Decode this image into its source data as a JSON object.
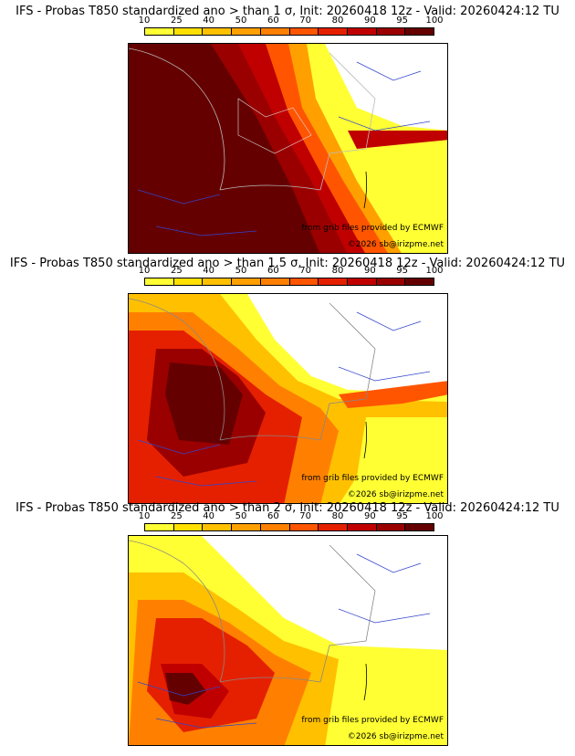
{
  "legend": {
    "labels": [
      "10",
      "25",
      "40",
      "50",
      "60",
      "70",
      "80",
      "90",
      "95",
      "100"
    ],
    "colors": [
      "#ffff33",
      "#ffe000",
      "#ffc000",
      "#ffa000",
      "#ff8000",
      "#ff5500",
      "#e52000",
      "#c00000",
      "#9a0000",
      "#650000"
    ]
  },
  "map_credits": {
    "source": "from grib files provided by ECMWF",
    "copyright": "©2026 sb@irizpme.net"
  },
  "panels": [
    {
      "title": "IFS - Probas T850  standardized ano > than 1 σ, Init: 20260418 12z - Valid: 20260424:12 TU",
      "threshold_sigma": 1
    },
    {
      "title": "IFS - Probas T850  standardized ano > than 1.5 σ, Init: 20260418 12z - Valid: 20260424:12 TU",
      "threshold_sigma": 1.5
    },
    {
      "title": "IFS - Probas T850  standardized ano > than 2 σ, Init: 20260418 12z - Valid: 20260424:12 TU",
      "threshold_sigma": 2
    }
  ]
}
